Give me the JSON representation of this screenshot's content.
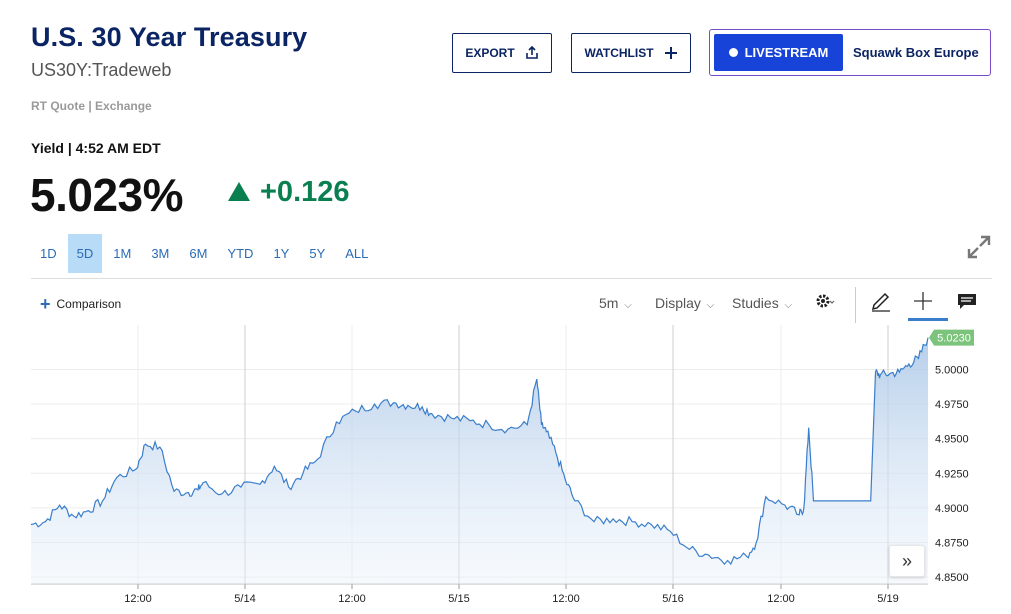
{
  "header": {
    "title": "U.S. 30 Year Treasury",
    "symbol": "US30Y:Tradeweb",
    "quote_source": "RT Quote | Exchange"
  },
  "actions": {
    "export_label": "EXPORT",
    "watchlist_label": "WATCHLIST",
    "livestream_label": "LIVESTREAM",
    "livestream_show": "Squawk Box Europe"
  },
  "quote": {
    "label": "Yield | 4:52 AM EDT",
    "value": "5.023%",
    "change": "+0.126",
    "direction": "up",
    "up_color": "#0a7f4f"
  },
  "ranges": [
    {
      "label": "1D",
      "active": false
    },
    {
      "label": "5D",
      "active": true
    },
    {
      "label": "1M",
      "active": false
    },
    {
      "label": "3M",
      "active": false
    },
    {
      "label": "6M",
      "active": false
    },
    {
      "label": "YTD",
      "active": false
    },
    {
      "label": "1Y",
      "active": false
    },
    {
      "label": "5Y",
      "active": false
    },
    {
      "label": "ALL",
      "active": false
    }
  ],
  "toolbar": {
    "comparison_label": "Comparison",
    "interval_label": "5m",
    "display_label": "Display",
    "studies_label": "Studies",
    "icons": [
      "settings-icon",
      "draw-pencil-icon",
      "crosshair-icon",
      "comment-icon"
    ]
  },
  "chart_data": {
    "type": "area",
    "x_tick_labels": [
      "12:00",
      "5/14",
      "12:00",
      "5/15",
      "12:00",
      "5/16",
      "12:00",
      "5/19"
    ],
    "y_tick_labels": [
      "5.0000",
      "4.9750",
      "4.9500",
      "4.9250",
      "4.9000",
      "4.8750",
      "4.8500"
    ],
    "ylim": [
      4.845,
      5.0285
    ],
    "last_value_label": "5.0230",
    "line_color": "#3a7ecb",
    "last_label_color": "#7cc47c",
    "grid": true,
    "series": [
      {
        "x": [
          0,
          0.015,
          0.03,
          0.045,
          0.06,
          0.075,
          0.09,
          0.11,
          0.12,
          0.135,
          0.15,
          0.165,
          0.175,
          0.18,
          0.2,
          0.22,
          0.24,
          0.255,
          0.27,
          0.285,
          0.3,
          0.32,
          0.34,
          0.36,
          0.38,
          0.395,
          0.41,
          0.42,
          0.44,
          0.46,
          0.48,
          0.5,
          0.52,
          0.53,
          0.535,
          0.54,
          0.55,
          0.56,
          0.57,
          0.59,
          0.61,
          0.63,
          0.65,
          0.67,
          0.69,
          0.71,
          0.73,
          0.75,
          0.76,
          0.77,
          0.79,
          0.805,
          0.81,
          0.815,
          0.82,
          0.83,
          0.85,
          0.87,
          0.88,
          0.885,
          0.89,
          0.9,
          0.91,
          0.92,
          0.93,
          0.94
        ],
        "y": [
          4.888,
          4.89,
          4.902,
          4.894,
          4.898,
          4.905,
          4.922,
          4.928,
          4.946,
          4.944,
          4.912,
          4.911,
          4.913,
          4.918,
          4.91,
          4.915,
          4.917,
          4.93,
          4.915,
          4.925,
          4.935,
          4.962,
          4.97,
          4.975,
          4.976,
          4.974,
          4.973,
          4.968,
          4.965,
          4.963,
          4.96,
          4.957,
          4.96,
          4.993,
          4.96,
          4.955,
          4.94,
          4.92,
          4.905,
          4.89,
          4.892,
          4.89,
          4.888,
          4.883,
          4.87,
          4.866,
          4.862,
          4.865,
          4.875,
          4.908,
          4.902,
          4.895,
          4.9,
          4.958,
          4.905,
          4.905,
          4.905,
          4.905,
          4.905,
          4.998,
          4.996,
          4.997,
          4.998,
          5.004,
          5.008,
          5.023
        ]
      }
    ]
  }
}
